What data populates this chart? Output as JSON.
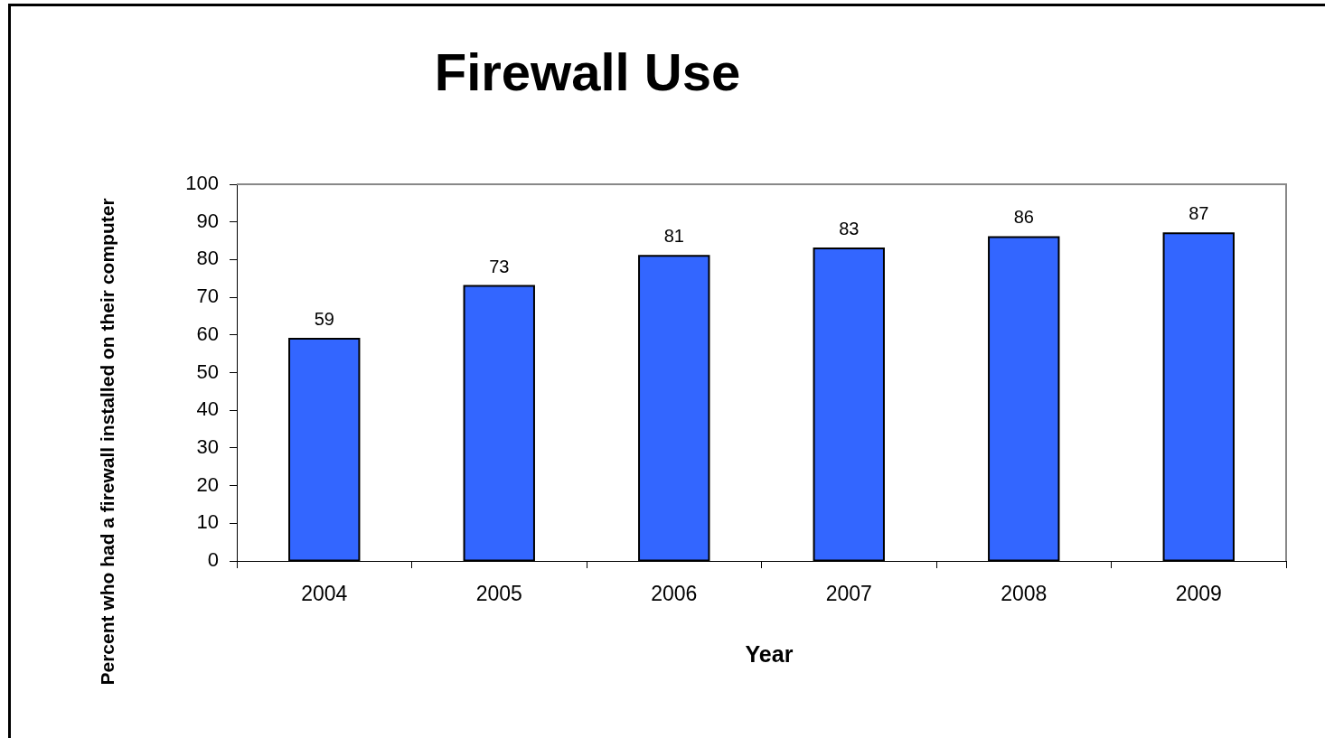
{
  "chart_data": {
    "type": "bar",
    "title": "Firewall Use",
    "xlabel": "Year",
    "ylabel": "Percent who had a firewall installed on their computer",
    "categories": [
      "2004",
      "2005",
      "2006",
      "2007",
      "2008",
      "2009"
    ],
    "values": [
      59,
      73,
      81,
      83,
      86,
      87
    ],
    "color": "#3366ff",
    "ylim": [
      0,
      100
    ],
    "yticks": [
      0,
      10,
      20,
      30,
      40,
      50,
      60,
      70,
      80,
      90,
      100
    ],
    "data_labels": true
  }
}
